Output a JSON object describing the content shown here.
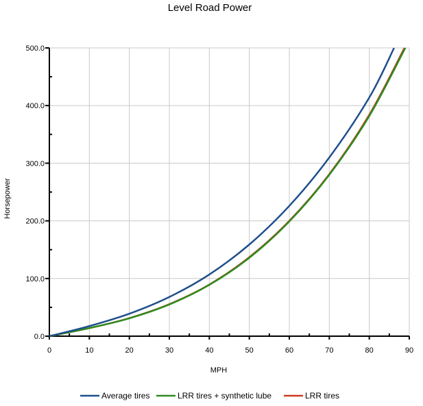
{
  "chart_data": {
    "type": "line",
    "title": "Level Road Power",
    "xlabel": "MPH",
    "ylabel": "Horsepower",
    "xlim": [
      0,
      90
    ],
    "ylim": [
      0,
      500
    ],
    "x_ticks": [
      "0",
      "10",
      "20",
      "30",
      "40",
      "50",
      "60",
      "70",
      "80",
      "90"
    ],
    "y_ticks": [
      "0.0",
      "100.0",
      "200.0",
      "300.0",
      "400.0",
      "500.0"
    ],
    "grid": true,
    "legend_position": "bottom",
    "series": [
      {
        "name": "Average tires",
        "color": "#1f4e8c",
        "x": [
          0,
          10,
          20,
          30,
          40,
          50,
          60,
          70,
          80,
          86.2
        ],
        "y": [
          0,
          17.5,
          39,
          68,
          107,
          159,
          226,
          310,
          414,
          500
        ]
      },
      {
        "name": "LRR tires + synthetic lube",
        "color": "#2e8b1f",
        "x": [
          0,
          10,
          20,
          30,
          40,
          50,
          60,
          70,
          80,
          89.0
        ],
        "y": [
          0,
          14,
          31,
          55,
          89,
          136,
          199,
          280,
          382,
          500
        ]
      },
      {
        "name": "LRR tires",
        "color": "#cc3a1a",
        "x": [
          0,
          10,
          20,
          30,
          40,
          50,
          60,
          70,
          80,
          88.8
        ],
        "y": [
          0,
          14,
          31.3,
          55.5,
          89.5,
          137,
          200,
          281,
          384,
          500
        ]
      }
    ]
  }
}
